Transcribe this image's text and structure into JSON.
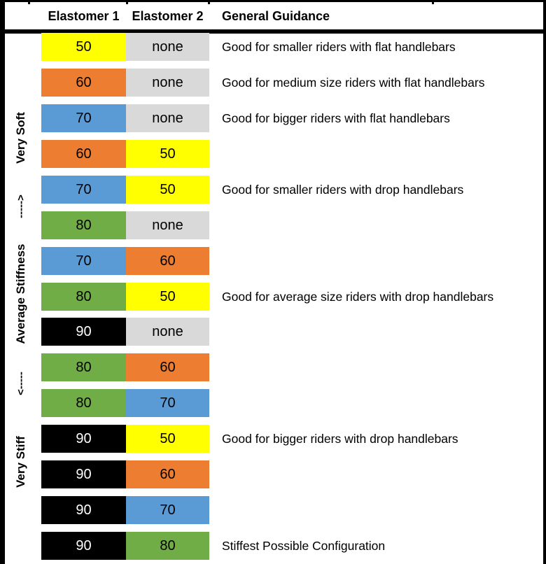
{
  "header": {
    "elastomer1": "Elastomer 1",
    "elastomer2": "Elastomer 2",
    "guidance": "General Guidance"
  },
  "stiffness_axis": {
    "very_soft": "Very Soft",
    "arrow_toward_soft": "----->",
    "average": "Average Stiffness",
    "arrow_toward_stiff": "<-----",
    "very_stiff": "Very Stiff"
  },
  "colors": {
    "yellow": "#FFFF00",
    "orange": "#ED7D31",
    "blue": "#5B9BD5",
    "green": "#70AD47",
    "black": "#000000",
    "gray": "#D9D9D9",
    "text_on_dark": "#FFFFFF",
    "text_on_light": "#000000"
  },
  "chart_data": {
    "type": "table",
    "columns": [
      "Elastomer 1",
      "Elastomer 2",
      "General Guidance"
    ],
    "color_legend": {
      "50": "yellow",
      "60": "orange",
      "70": "blue",
      "80": "green",
      "90": "black",
      "none": "gray"
    },
    "rows": [
      {
        "elastomer1": "50",
        "elastomer1_color": "yellow",
        "elastomer2": "none",
        "elastomer2_color": "gray",
        "guidance": "Good for smaller riders with flat handlebars"
      },
      {
        "elastomer1": "60",
        "elastomer1_color": "orange",
        "elastomer2": "none",
        "elastomer2_color": "gray",
        "guidance": "Good for medium size riders with flat handlebars"
      },
      {
        "elastomer1": "70",
        "elastomer1_color": "blue",
        "elastomer2": "none",
        "elastomer2_color": "gray",
        "guidance": "Good for bigger riders with flat handlebars"
      },
      {
        "elastomer1": "60",
        "elastomer1_color": "orange",
        "elastomer2": "50",
        "elastomer2_color": "yellow",
        "guidance": ""
      },
      {
        "elastomer1": "70",
        "elastomer1_color": "blue",
        "elastomer2": "50",
        "elastomer2_color": "yellow",
        "guidance": "Good for smaller riders with drop handlebars"
      },
      {
        "elastomer1": "80",
        "elastomer1_color": "green",
        "elastomer2": "none",
        "elastomer2_color": "gray",
        "guidance": ""
      },
      {
        "elastomer1": "70",
        "elastomer1_color": "blue",
        "elastomer2": "60",
        "elastomer2_color": "orange",
        "guidance": ""
      },
      {
        "elastomer1": "80",
        "elastomer1_color": "green",
        "elastomer2": "50",
        "elastomer2_color": "yellow",
        "guidance": "Good for average size riders with drop handlebars"
      },
      {
        "elastomer1": "90",
        "elastomer1_color": "black",
        "elastomer2": "none",
        "elastomer2_color": "gray",
        "guidance": ""
      },
      {
        "elastomer1": "80",
        "elastomer1_color": "green",
        "elastomer2": "60",
        "elastomer2_color": "orange",
        "guidance": ""
      },
      {
        "elastomer1": "80",
        "elastomer1_color": "green",
        "elastomer2": "70",
        "elastomer2_color": "blue",
        "guidance": ""
      },
      {
        "elastomer1": "90",
        "elastomer1_color": "black",
        "elastomer2": "50",
        "elastomer2_color": "yellow",
        "guidance": "Good for bigger riders with drop handlebars"
      },
      {
        "elastomer1": "90",
        "elastomer1_color": "black",
        "elastomer2": "60",
        "elastomer2_color": "orange",
        "guidance": ""
      },
      {
        "elastomer1": "90",
        "elastomer1_color": "black",
        "elastomer2": "70",
        "elastomer2_color": "blue",
        "guidance": ""
      },
      {
        "elastomer1": "90",
        "elastomer1_color": "black",
        "elastomer2": "80",
        "elastomer2_color": "green",
        "guidance": "Stiffest Possible Configuration"
      }
    ]
  }
}
